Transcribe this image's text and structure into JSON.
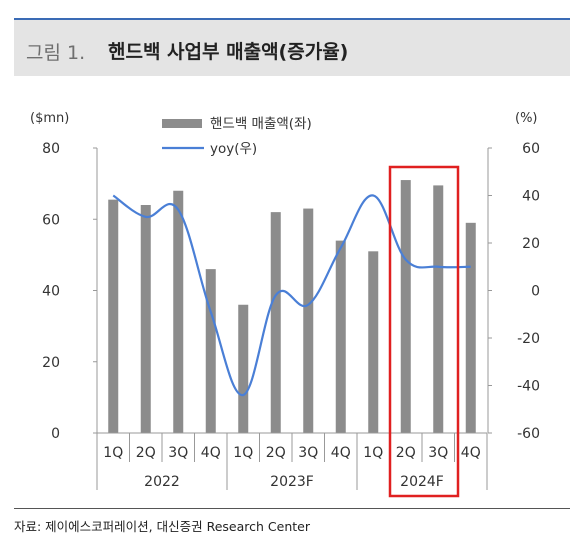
{
  "header": {
    "figure_label": "그림 1.",
    "title": "핸드백 사업부 매출액(증가율)"
  },
  "source": "자료: 제이에스코퍼레이션, 대신증권 Research Center",
  "chart_data": {
    "type": "bar",
    "categories": [
      "1Q",
      "2Q",
      "3Q",
      "4Q",
      "1Q",
      "2Q",
      "3Q",
      "4Q",
      "1Q",
      "2Q",
      "3Q",
      "4Q"
    ],
    "years": [
      "2022",
      "2023F",
      "2024F"
    ],
    "left_axis": {
      "unit": "($mn)",
      "ylim": [
        0,
        80
      ],
      "ticks": [
        "0",
        "20",
        "40",
        "60",
        "80"
      ]
    },
    "right_axis": {
      "unit": "(%)",
      "ylim": [
        -60,
        60
      ],
      "ticks": [
        "-60",
        "-40",
        "-20",
        "0",
        "20",
        "40",
        "60"
      ]
    },
    "series": [
      {
        "name": "핸드백 매출액(좌)",
        "type": "bar",
        "axis": "left",
        "color": "#8c8c8c",
        "values": [
          65.5,
          64,
          68,
          46,
          36,
          62,
          63,
          54,
          51,
          71,
          69.5,
          59
        ]
      },
      {
        "name": "yoy(우)",
        "type": "line",
        "axis": "right",
        "color": "#4a7fd6",
        "values": [
          40,
          31,
          34,
          -9,
          -44,
          -2,
          -6,
          18,
          40,
          13,
          10,
          10
        ]
      }
    ],
    "highlight": {
      "categories": [
        "2Q",
        "3Q",
        "4Q"
      ],
      "year": "2024F",
      "color": "#e02020"
    },
    "legend_position": "top",
    "grid": false
  }
}
